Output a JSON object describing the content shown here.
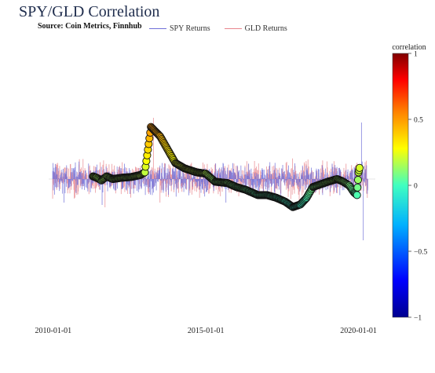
{
  "chart_data": {
    "type": "line",
    "title": "SPY/GLD Correlation",
    "subtitle": "Source: Coin Metrics, Finnhub",
    "x_ticks": [
      "2010-01-01",
      "2015-01-01",
      "2020-01-01"
    ],
    "x_range_years": [
      2009.85,
      2020.55
    ],
    "y_range": [
      -0.1,
      0.1
    ],
    "series": [
      {
        "name": "SPY Returns",
        "color": "#6f6fd8"
      },
      {
        "name": "GLD Returns",
        "color": "#e8858c"
      }
    ],
    "correlation_points": [
      [
        2011.3,
        0.02
      ],
      [
        2011.42,
        0.01
      ],
      [
        2011.58,
        -0.01
      ],
      [
        2011.75,
        0.02
      ],
      [
        2011.95,
        0.0
      ],
      [
        2012.25,
        0.01
      ],
      [
        2012.55,
        0.015
      ],
      [
        2012.85,
        0.03
      ],
      [
        2013.0,
        0.05
      ],
      [
        2013.2,
        0.39
      ],
      [
        2013.5,
        0.32
      ],
      [
        2013.8,
        0.2
      ],
      [
        2014.0,
        0.12
      ],
      [
        2014.3,
        0.08
      ],
      [
        2014.7,
        0.05
      ],
      [
        2015.0,
        0.04
      ],
      [
        2015.3,
        -0.02
      ],
      [
        2015.7,
        -0.03
      ],
      [
        2016.0,
        -0.06
      ],
      [
        2016.3,
        -0.08
      ],
      [
        2016.7,
        -0.12
      ],
      [
        2017.0,
        -0.12
      ],
      [
        2017.3,
        -0.14
      ],
      [
        2017.6,
        -0.17
      ],
      [
        2017.85,
        -0.21
      ],
      [
        2018.1,
        -0.19
      ],
      [
        2018.3,
        -0.14
      ],
      [
        2018.5,
        -0.06
      ],
      [
        2018.75,
        -0.04
      ],
      [
        2019.0,
        -0.02
      ],
      [
        2019.3,
        0.0
      ],
      [
        2019.5,
        -0.02
      ],
      [
        2019.7,
        -0.05
      ],
      [
        2019.85,
        -0.1
      ],
      [
        2019.95,
        -0.12
      ],
      [
        2020.0,
        0.05
      ],
      [
        2020.05,
        0.1
      ]
    ],
    "colorbar": {
      "title": "correlation",
      "range": [
        -1,
        1
      ],
      "ticks": [
        "1",
        "0.5",
        "0",
        "−0.5",
        "−1"
      ],
      "colorscale": [
        "#00008f",
        "#0000ff",
        "#00b0ff",
        "#40ffc0",
        "#ffff00",
        "#ff8000",
        "#ff0000",
        "#800000"
      ]
    }
  }
}
